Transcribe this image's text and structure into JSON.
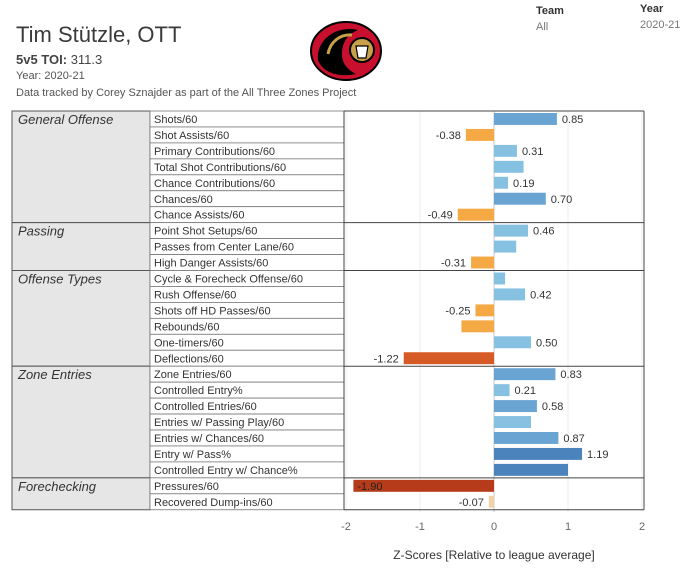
{
  "header": {
    "player_name": "Tim Stützle, OTT",
    "toi_label": "5v5 TOI:",
    "toi_value": "311.3",
    "year_line": "Year: 2020-21",
    "credit": "Data tracked by Corey Sznajder as part of the All Three Zones Project"
  },
  "filters": {
    "team_label": "Team",
    "team_value": "All",
    "year_label": "Year",
    "year_value": "2020-21"
  },
  "logo": {
    "icon": "ottawa-senators-logo"
  },
  "colors": {
    "neg_light": "#f5a945",
    "neg_dark": "#d65a25",
    "neg_deep": "#b53b1a",
    "pos_light": "#86c1e2",
    "pos_mid": "#6aa4d2",
    "pos_dark": "#4b84bd",
    "near_zero": "#f0d2a6",
    "group_bg": "#e6e6e6"
  },
  "chart_data": {
    "type": "bar",
    "orientation": "horizontal",
    "xlabel": "Z-Scores [Relative to league average]",
    "xlim": [
      -2,
      2
    ],
    "xticks": [
      -2,
      -1,
      0,
      1,
      2
    ],
    "groups": [
      {
        "name": "General Offense",
        "metrics": [
          {
            "label": "Shots/60",
            "value": 0.85,
            "show": "0.85"
          },
          {
            "label": "Shot Assists/60",
            "value": -0.38,
            "show": "-0.38"
          },
          {
            "label": "Primary Contributions/60",
            "value": 0.31,
            "show": "0.31"
          },
          {
            "label": "Total Shot Contributions/60",
            "value": 0.4,
            "show": ""
          },
          {
            "label": "Chance Contributions/60",
            "value": 0.19,
            "show": "0.19"
          },
          {
            "label": "Chances/60",
            "value": 0.7,
            "show": "0.70"
          },
          {
            "label": "Chance Assists/60",
            "value": -0.49,
            "show": "-0.49"
          }
        ]
      },
      {
        "name": "Passing",
        "metrics": [
          {
            "label": "Point Shot Setups/60",
            "value": 0.46,
            "show": "0.46"
          },
          {
            "label": "Passes from Center Lane/60",
            "value": 0.3,
            "show": ""
          },
          {
            "label": "High Danger Assists/60",
            "value": -0.31,
            "show": "-0.31"
          }
        ]
      },
      {
        "name": "Offense Types",
        "metrics": [
          {
            "label": "Cycle & Forecheck Offense/60",
            "value": 0.15,
            "show": ""
          },
          {
            "label": "Rush Offense/60",
            "value": 0.42,
            "show": "0.42"
          },
          {
            "label": "Shots off HD Passes/60",
            "value": -0.25,
            "show": "-0.25"
          },
          {
            "label": "Rebounds/60",
            "value": -0.44,
            "show": ""
          },
          {
            "label": "One-timers/60",
            "value": 0.5,
            "show": "0.50"
          },
          {
            "label": "Deflections/60",
            "value": -1.22,
            "show": "-1.22"
          }
        ]
      },
      {
        "name": "Zone Entries",
        "metrics": [
          {
            "label": "Zone Entries/60",
            "value": 0.83,
            "show": "0.83"
          },
          {
            "label": "Controlled Entry%",
            "value": 0.21,
            "show": "0.21"
          },
          {
            "label": "Controlled Entries/60",
            "value": 0.58,
            "show": "0.58"
          },
          {
            "label": "Entries w/ Passing Play/60",
            "value": 0.5,
            "show": ""
          },
          {
            "label": "Entries w/ Chances/60",
            "value": 0.87,
            "show": "0.87"
          },
          {
            "label": "Entry w/ Pass%",
            "value": 1.19,
            "show": "1.19"
          },
          {
            "label": "Controlled Entry w/ Chance%",
            "value": 1.0,
            "show": ""
          }
        ]
      },
      {
        "name": "Forechecking",
        "metrics": [
          {
            "label": "Pressures/60",
            "value": -1.9,
            "show": "-1.90"
          },
          {
            "label": "Recovered Dump-ins/60",
            "value": -0.07,
            "show": "-0.07"
          }
        ]
      }
    ]
  }
}
